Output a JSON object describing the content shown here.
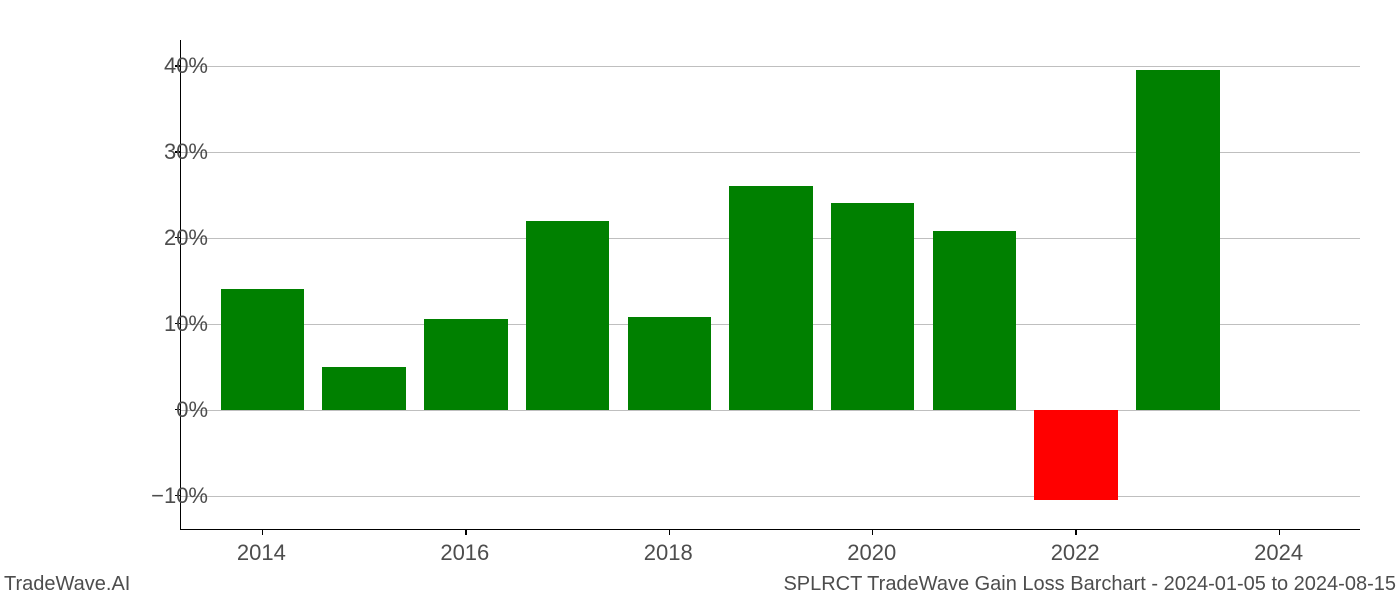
{
  "chart": {
    "type": "bar",
    "background_color": "#ffffff",
    "grid_color": "#bfbfbf",
    "axis_color": "#000000",
    "tick_label_color": "#4d4d4d",
    "tick_label_fontsize": 22,
    "years": [
      2014,
      2015,
      2016,
      2017,
      2018,
      2019,
      2020,
      2021,
      2022,
      2023
    ],
    "values": [
      14.0,
      5.0,
      10.5,
      22.0,
      10.8,
      26.0,
      24.0,
      20.8,
      -10.5,
      39.5
    ],
    "bar_colors": [
      "#008000",
      "#008000",
      "#008000",
      "#008000",
      "#008000",
      "#008000",
      "#008000",
      "#008000",
      "#ff0000",
      "#008000"
    ],
    "pos_color": "#008000",
    "neg_color": "#ff0000",
    "bar_width_ratio": 0.82,
    "y_axis": {
      "min": -14,
      "max": 43,
      "ticks": [
        -10,
        0,
        10,
        20,
        30,
        40
      ],
      "tick_labels": [
        "−10%",
        "0%",
        "10%",
        "20%",
        "30%",
        "40%"
      ]
    },
    "x_axis": {
      "min": 2013.2,
      "max": 2024.8,
      "ticks": [
        2014,
        2016,
        2018,
        2020,
        2022,
        2024
      ],
      "tick_labels": [
        "2014",
        "2016",
        "2018",
        "2020",
        "2022",
        "2024"
      ]
    }
  },
  "footer": {
    "left": "TradeWave.AI",
    "right": "SPLRCT TradeWave Gain Loss Barchart - 2024-01-05 to 2024-08-15"
  }
}
